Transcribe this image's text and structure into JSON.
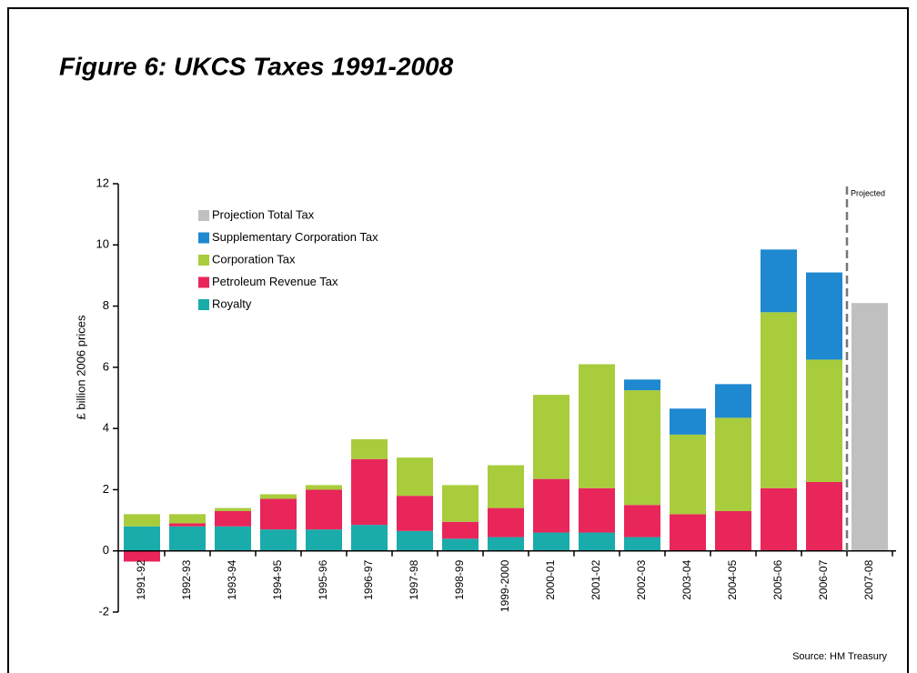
{
  "chart_data": {
    "type": "stacked_bar",
    "title": "Figure 6: UKCS Taxes 1991-2008",
    "ylabel": "£ billion 2006 prices",
    "annotations": [
      "Projected",
      "Source: HM Treasury"
    ],
    "categories": [
      "1991-92",
      "1992-93",
      "1993-94",
      "1994-95",
      "1995-96",
      "1996-97",
      "1997-98",
      "1998-99",
      "1999-2000",
      "2000-01",
      "2001-02",
      "2002-03",
      "2003-04",
      "2004-05",
      "2005-06",
      "2006-07",
      "2007-08"
    ],
    "series": [
      {
        "name": "Projection Total Tax",
        "color": "#c0c0c0",
        "values": [
          null,
          null,
          null,
          null,
          null,
          null,
          null,
          null,
          null,
          null,
          null,
          null,
          null,
          null,
          null,
          null,
          8.1
        ]
      },
      {
        "name": "Supplementary Corporation Tax",
        "color": "#1e88d0",
        "values": [
          0,
          0,
          0,
          0,
          0,
          0,
          0,
          0,
          0,
          0,
          0,
          0.35,
          0.85,
          1.1,
          2.05,
          2.85,
          null
        ]
      },
      {
        "name": "Corporation Tax",
        "color": "#a8cc3c",
        "values": [
          0.4,
          0.3,
          0.1,
          0.15,
          0.15,
          0.65,
          1.25,
          1.2,
          1.4,
          2.75,
          4.05,
          3.75,
          2.6,
          3.05,
          5.75,
          4.0,
          null
        ]
      },
      {
        "name": "Petroleum Revenue Tax",
        "color": "#e8265a",
        "values": [
          -0.35,
          0.1,
          0.5,
          1.0,
          1.3,
          2.15,
          1.15,
          0.55,
          0.95,
          1.75,
          1.45,
          1.05,
          1.2,
          1.3,
          2.05,
          2.25,
          null
        ]
      },
      {
        "name": "Royalty",
        "color": "#1aabab",
        "values": [
          0.8,
          0.8,
          0.8,
          0.7,
          0.7,
          0.85,
          0.65,
          0.4,
          0.45,
          0.6,
          0.6,
          0.45,
          0,
          0,
          0,
          0,
          null
        ]
      }
    ],
    "ylim": [
      -2,
      12
    ],
    "yticks": [
      -2,
      0,
      2,
      4,
      6,
      8,
      10,
      12
    ],
    "grid": false,
    "legend": "upper left"
  }
}
